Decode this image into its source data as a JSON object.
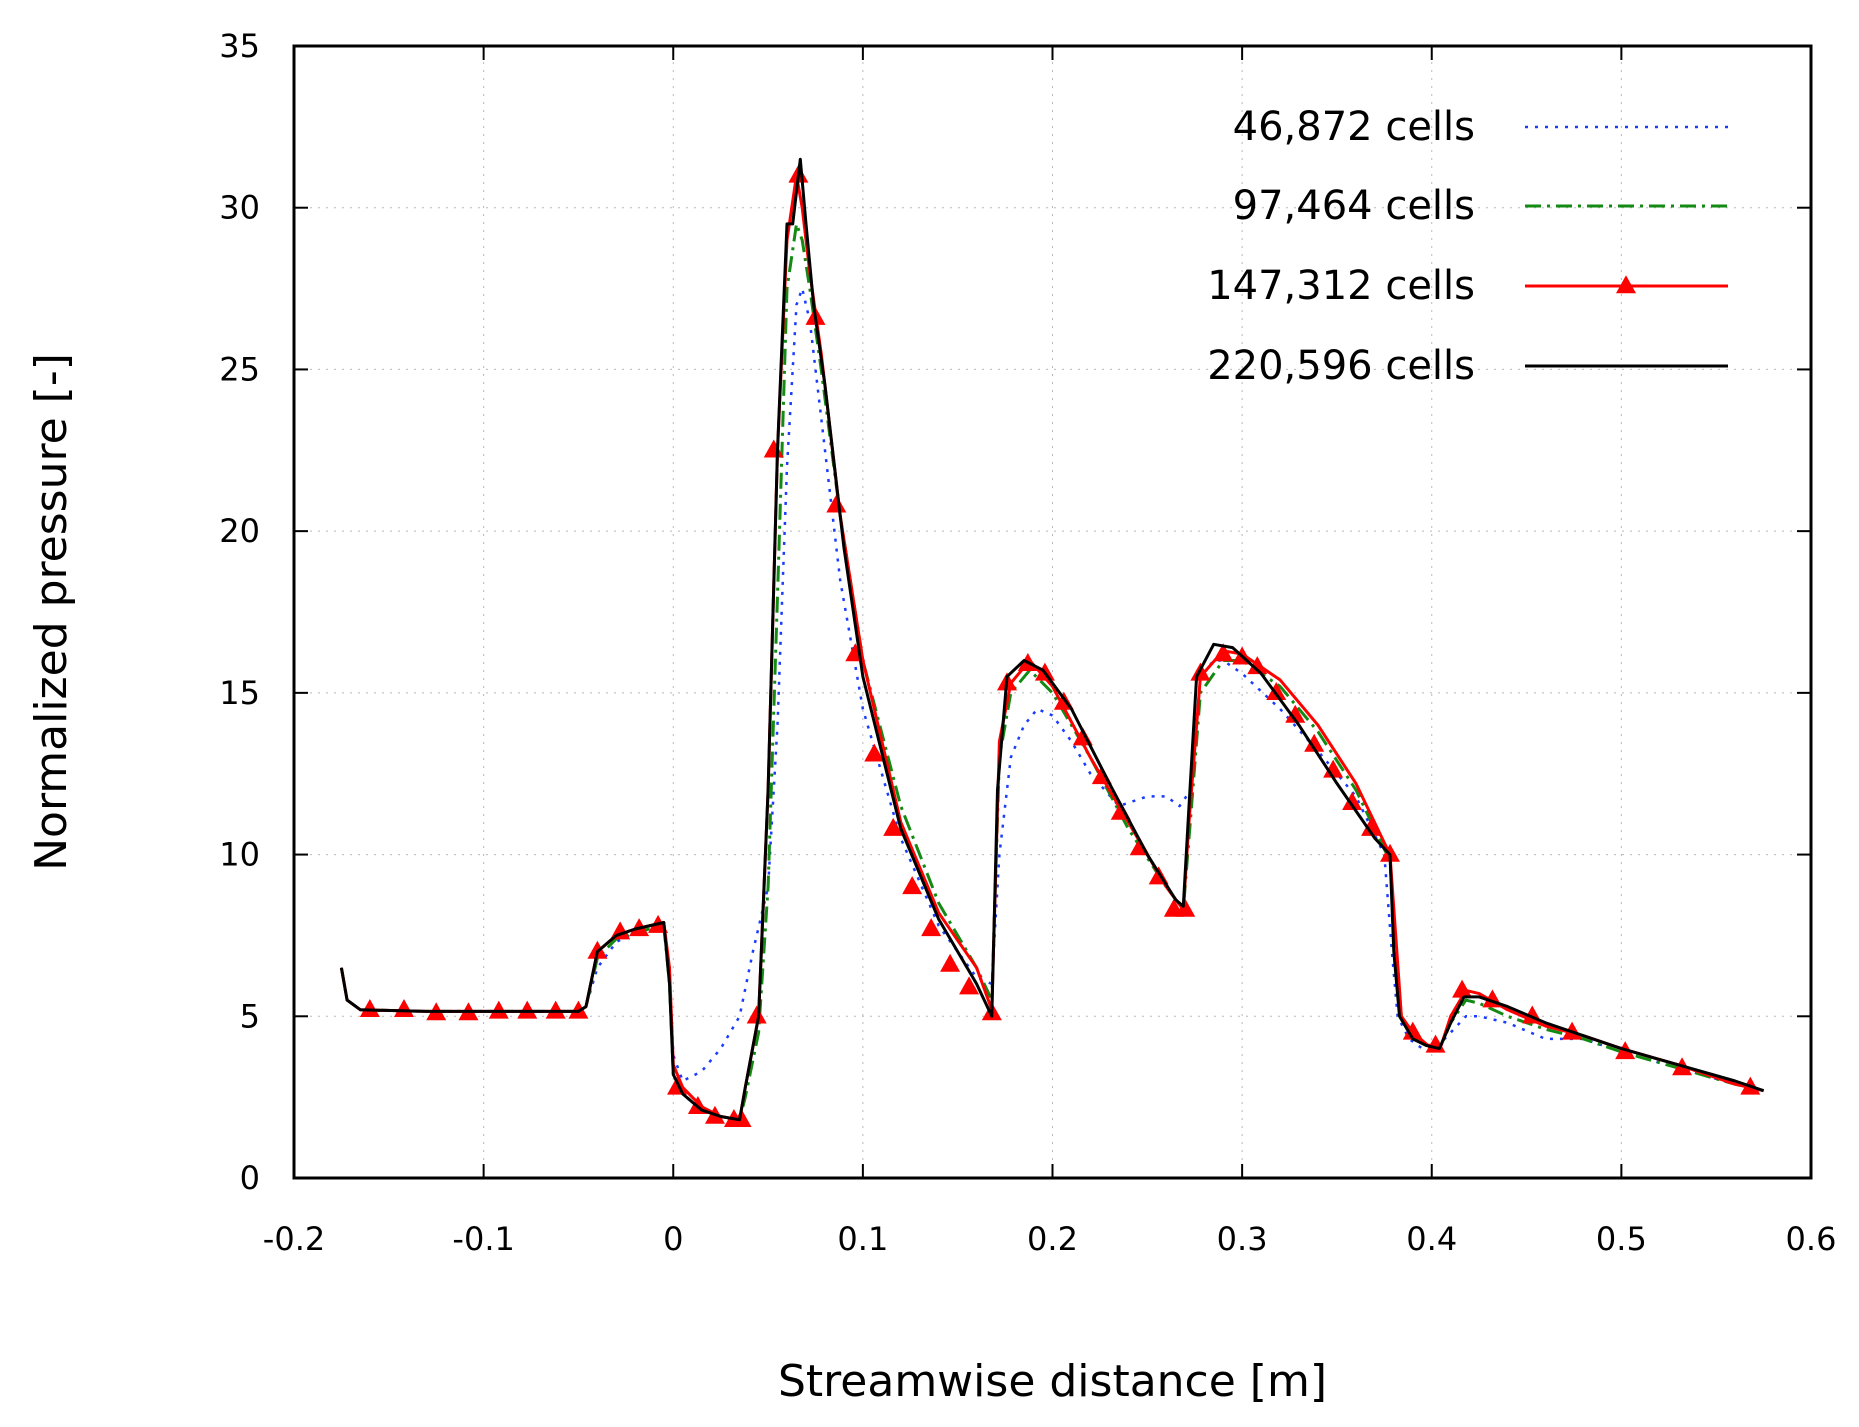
{
  "chart_data": {
    "type": "line",
    "title": "",
    "xlabel": "Streamwise distance [m]",
    "ylabel": "Normalized pressure [-]",
    "xlim": [
      -0.2,
      0.6
    ],
    "ylim": [
      0,
      35
    ],
    "xticks": [
      -0.2,
      -0.1,
      0,
      0.1,
      0.2,
      0.3,
      0.4,
      0.5,
      0.6
    ],
    "xtick_labels": [
      "-0.2",
      "-0.1",
      "0",
      "0.1",
      "0.2",
      "0.3",
      "0.4",
      "0.5",
      "0.6"
    ],
    "yticks": [
      0,
      5,
      10,
      15,
      20,
      25,
      30,
      35
    ],
    "ytick_labels": [
      "0",
      "5",
      "10",
      "15",
      "20",
      "25",
      "30",
      "35"
    ],
    "grid": true,
    "legend_position": "top-right",
    "series": [
      {
        "name": "46,872 cells",
        "color": "#1a3cff",
        "style": "dotted",
        "marker": "none",
        "x": [
          -0.175,
          -0.172,
          -0.165,
          -0.13,
          -0.09,
          -0.05,
          -0.046,
          -0.04,
          -0.03,
          -0.02,
          -0.005,
          -0.002,
          0.0,
          0.005,
          0.015,
          0.025,
          0.035,
          0.042,
          0.05,
          0.055,
          0.06,
          0.065,
          0.068,
          0.072,
          0.078,
          0.088,
          0.1,
          0.12,
          0.14,
          0.16,
          0.168,
          0.172,
          0.178,
          0.185,
          0.192,
          0.2,
          0.21,
          0.22,
          0.235,
          0.25,
          0.26,
          0.267,
          0.273,
          0.278,
          0.285,
          0.29,
          0.3,
          0.32,
          0.34,
          0.36,
          0.375,
          0.379,
          0.382,
          0.388,
          0.395,
          0.402,
          0.41,
          0.418,
          0.425,
          0.44,
          0.46,
          0.48,
          0.5,
          0.53,
          0.56,
          0.575
        ],
        "y": [
          6.5,
          5.5,
          5.2,
          5.15,
          5.15,
          5.15,
          5.3,
          6.5,
          7.3,
          7.6,
          7.8,
          6.5,
          3.8,
          3.0,
          3.3,
          4.0,
          5.0,
          7.0,
          9.0,
          14.0,
          22.0,
          27.0,
          27.5,
          26.5,
          23.5,
          18.5,
          14.5,
          10.5,
          7.8,
          6.2,
          6.0,
          10.0,
          13.0,
          14.0,
          14.5,
          14.3,
          13.5,
          12.5,
          11.5,
          11.8,
          11.8,
          11.5,
          12.0,
          15.5,
          16.0,
          16.0,
          15.6,
          14.5,
          13.2,
          11.8,
          10.0,
          7.0,
          5.0,
          4.3,
          4.0,
          4.0,
          4.5,
          5.0,
          5.0,
          4.8,
          4.3,
          4.3,
          3.9,
          3.4,
          2.9,
          2.7
        ]
      },
      {
        "name": "97,464 cells",
        "color": "#138a13",
        "style": "dashdot",
        "marker": "none",
        "x": [
          -0.175,
          -0.172,
          -0.165,
          -0.13,
          -0.09,
          -0.05,
          -0.046,
          -0.04,
          -0.03,
          -0.02,
          -0.005,
          -0.002,
          0.0,
          0.005,
          0.015,
          0.025,
          0.035,
          0.038,
          0.045,
          0.05,
          0.055,
          0.06,
          0.065,
          0.068,
          0.072,
          0.078,
          0.088,
          0.1,
          0.12,
          0.14,
          0.16,
          0.168,
          0.172,
          0.178,
          0.188,
          0.2,
          0.22,
          0.24,
          0.26,
          0.269,
          0.272,
          0.278,
          0.29,
          0.3,
          0.32,
          0.34,
          0.36,
          0.378,
          0.381,
          0.384,
          0.39,
          0.398,
          0.405,
          0.41,
          0.418,
          0.425,
          0.44,
          0.46,
          0.48,
          0.5,
          0.53,
          0.56,
          0.575
        ],
        "y": [
          6.5,
          5.5,
          5.2,
          5.15,
          5.15,
          5.15,
          5.3,
          6.8,
          7.4,
          7.6,
          7.8,
          6.0,
          3.2,
          2.6,
          2.1,
          1.9,
          1.8,
          2.5,
          4.5,
          9.0,
          18.0,
          27.5,
          29.5,
          29.0,
          27.5,
          25.0,
          20.5,
          16.0,
          11.5,
          8.5,
          6.5,
          5.5,
          13.0,
          15.0,
          15.7,
          15.0,
          13.0,
          10.8,
          9.0,
          8.3,
          10.5,
          15.0,
          16.0,
          16.0,
          15.2,
          13.8,
          12.0,
          9.8,
          7.0,
          5.0,
          4.4,
          4.1,
          4.1,
          4.8,
          5.5,
          5.4,
          5.0,
          4.6,
          4.3,
          3.9,
          3.4,
          2.9,
          2.7
        ]
      },
      {
        "name": "147,312 cells",
        "color": "#ff0000",
        "style": "solid",
        "marker": "triangle",
        "x": [
          -0.175,
          -0.172,
          -0.165,
          -0.13,
          -0.09,
          -0.05,
          -0.046,
          -0.04,
          -0.03,
          -0.02,
          -0.005,
          -0.002,
          0.0,
          0.005,
          0.015,
          0.025,
          0.035,
          0.038,
          0.045,
          0.05,
          0.055,
          0.06,
          0.065,
          0.068,
          0.072,
          0.078,
          0.088,
          0.1,
          0.12,
          0.14,
          0.16,
          0.168,
          0.172,
          0.178,
          0.188,
          0.2,
          0.22,
          0.24,
          0.26,
          0.269,
          0.272,
          0.278,
          0.29,
          0.3,
          0.32,
          0.34,
          0.36,
          0.378,
          0.381,
          0.384,
          0.39,
          0.398,
          0.405,
          0.41,
          0.418,
          0.425,
          0.44,
          0.46,
          0.48,
          0.5,
          0.53,
          0.56,
          0.575
        ],
        "y": [
          6.5,
          5.5,
          5.2,
          5.15,
          5.15,
          5.15,
          5.3,
          7.0,
          7.5,
          7.7,
          7.9,
          6.5,
          3.5,
          2.8,
          2.2,
          1.9,
          1.8,
          2.8,
          5.0,
          12.0,
          22.5,
          29.0,
          31.0,
          30.0,
          28.0,
          25.5,
          20.5,
          16.0,
          11.0,
          8.2,
          6.5,
          5.2,
          13.5,
          15.3,
          16.0,
          15.2,
          13.0,
          11.0,
          9.0,
          8.3,
          11.0,
          15.5,
          16.3,
          16.2,
          15.4,
          14.0,
          12.2,
          10.0,
          7.5,
          5.0,
          4.5,
          4.1,
          4.1,
          5.0,
          5.8,
          5.7,
          5.2,
          4.7,
          4.4,
          4.0,
          3.5,
          2.9,
          2.7
        ],
        "markers_x": [
          -0.16,
          -0.142,
          -0.125,
          -0.108,
          -0.092,
          -0.077,
          -0.062,
          -0.05,
          -0.04,
          -0.028,
          -0.018,
          -0.008,
          0.002,
          0.013,
          0.022,
          0.032,
          0.036,
          0.044,
          0.053,
          0.066,
          0.075,
          0.086,
          0.096,
          0.106,
          0.116,
          0.126,
          0.136,
          0.146,
          0.156,
          0.168,
          0.176,
          0.187,
          0.196,
          0.206,
          0.216,
          0.226,
          0.236,
          0.246,
          0.256,
          0.264,
          0.27,
          0.278,
          0.29,
          0.3,
          0.308,
          0.318,
          0.328,
          0.338,
          0.348,
          0.358,
          0.368,
          0.378,
          0.39,
          0.402,
          0.416,
          0.432,
          0.453,
          0.474,
          0.502,
          0.532,
          0.568
        ],
        "markers_y": [
          5.2,
          5.2,
          5.1,
          5.1,
          5.15,
          5.15,
          5.15,
          5.15,
          7.0,
          7.6,
          7.7,
          7.8,
          2.8,
          2.2,
          1.9,
          1.8,
          1.8,
          5.0,
          22.5,
          31.0,
          26.6,
          20.8,
          16.2,
          13.1,
          10.8,
          9.0,
          7.7,
          6.6,
          5.9,
          5.1,
          15.3,
          15.9,
          15.6,
          14.7,
          13.6,
          12.4,
          11.3,
          10.2,
          9.3,
          8.3,
          8.3,
          15.6,
          16.2,
          16.1,
          15.8,
          15.0,
          14.3,
          13.4,
          12.6,
          11.6,
          10.8,
          10.0,
          4.5,
          4.1,
          5.8,
          5.5,
          5.0,
          4.5,
          3.9,
          3.4,
          2.8
        ]
      },
      {
        "name": "220,596 cells",
        "color": "#000000",
        "style": "solid",
        "marker": "none",
        "x": [
          -0.175,
          -0.172,
          -0.165,
          -0.13,
          -0.09,
          -0.05,
          -0.046,
          -0.04,
          -0.03,
          -0.02,
          -0.005,
          -0.002,
          0.0,
          0.005,
          0.015,
          0.025,
          0.035,
          0.038,
          0.045,
          0.05,
          0.055,
          0.06,
          0.063,
          0.067,
          0.07,
          0.074,
          0.08,
          0.09,
          0.1,
          0.12,
          0.14,
          0.16,
          0.168,
          0.171,
          0.176,
          0.185,
          0.195,
          0.21,
          0.23,
          0.25,
          0.265,
          0.269,
          0.272,
          0.276,
          0.285,
          0.295,
          0.31,
          0.33,
          0.35,
          0.37,
          0.378,
          0.38,
          0.383,
          0.39,
          0.397,
          0.404,
          0.41,
          0.417,
          0.425,
          0.44,
          0.46,
          0.48,
          0.5,
          0.53,
          0.56,
          0.575
        ],
        "y": [
          6.5,
          5.5,
          5.2,
          5.15,
          5.15,
          5.15,
          5.3,
          7.0,
          7.5,
          7.7,
          7.9,
          6.0,
          3.2,
          2.6,
          2.1,
          1.9,
          1.8,
          2.8,
          5.0,
          12.0,
          22.5,
          29.5,
          29.5,
          31.5,
          29.5,
          27.0,
          24.5,
          19.5,
          15.5,
          10.8,
          8.0,
          6.0,
          5.0,
          12.0,
          15.5,
          16.0,
          15.7,
          14.5,
          12.2,
          10.0,
          8.6,
          8.4,
          11.5,
          15.5,
          16.5,
          16.4,
          15.6,
          14.0,
          12.2,
          10.5,
          10.0,
          7.0,
          5.0,
          4.3,
          4.1,
          4.0,
          4.8,
          5.6,
          5.6,
          5.3,
          4.8,
          4.4,
          4.0,
          3.5,
          3.0,
          2.7
        ]
      }
    ]
  }
}
